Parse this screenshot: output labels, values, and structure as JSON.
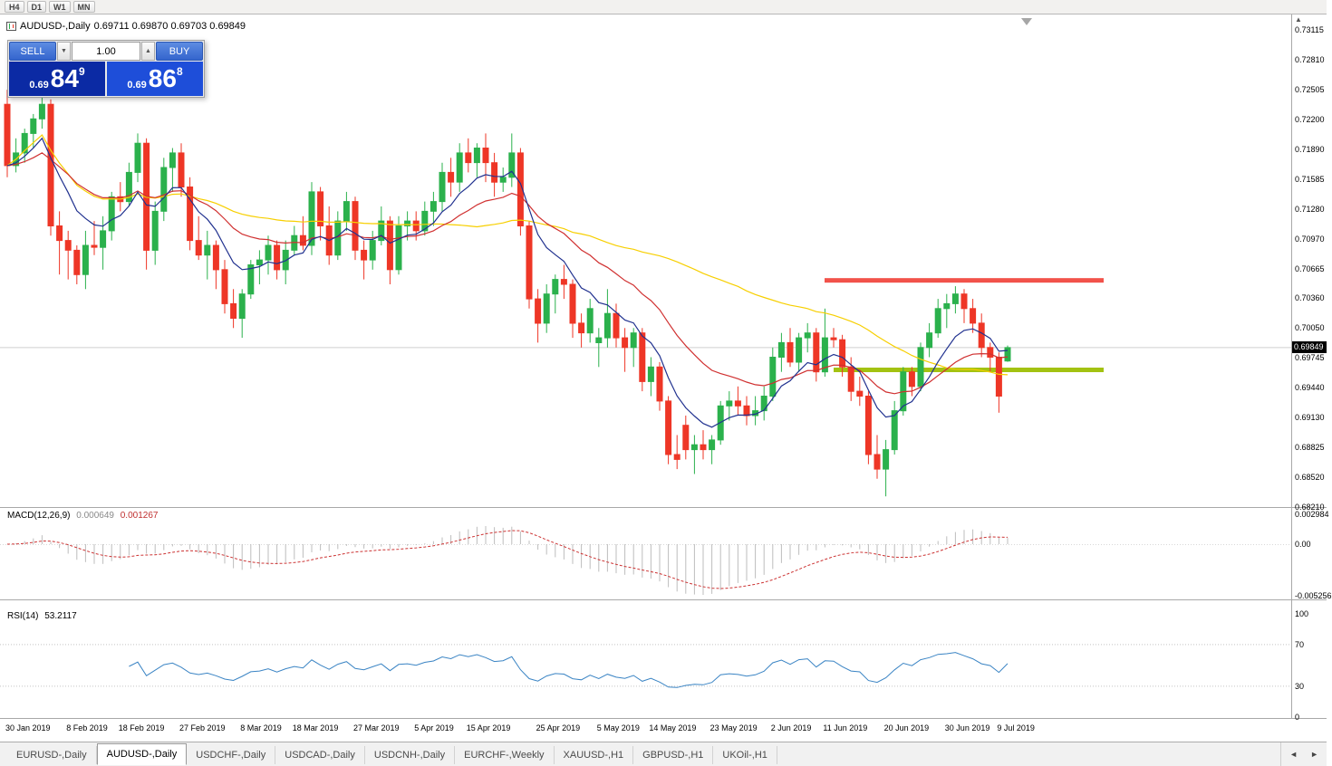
{
  "colors": {
    "up": "#2bb14c",
    "down": "#ee3626",
    "ma_fast": "#20318f",
    "ma_mid": "#d03030",
    "ma_slow": "#f7cf00",
    "resistance": "#f2524a",
    "support": "#a3c211",
    "macd_hist": "#bdbdbd",
    "macd_signal": "#cc3333",
    "rsi": "#3a84c4",
    "sell_box": "#0b2aa4",
    "buy_box": "#1e4ed9",
    "current_tag_bg": "#000000"
  },
  "icons": {
    "volume_down": "▼",
    "volume_up": "▲",
    "tab_scroll_left": "◄",
    "tab_scroll_right": "►",
    "axis_scroll_up": "▲"
  },
  "toolbar": {
    "timeframes": [
      "H4",
      "D1",
      "W1",
      "MN"
    ]
  },
  "chart_header": {
    "title": "AUDUSD-,Daily",
    "ohlc": "0.69711 0.69870 0.69703 0.69849"
  },
  "one_click": {
    "sell_label": "SELL",
    "buy_label": "BUY",
    "volume": "1.00",
    "sell_price": {
      "prefix": "0.69",
      "big": "84",
      "sup": "9"
    },
    "buy_price": {
      "prefix": "0.69",
      "big": "86",
      "sup": "8"
    }
  },
  "price_axis": {
    "labels": [
      "0.73115",
      "0.72810",
      "0.72505",
      "0.72200",
      "0.71890",
      "0.71585",
      "0.71280",
      "0.70970",
      "0.70665",
      "0.70360",
      "0.70050",
      "0.69745",
      "0.69440",
      "0.69130",
      "0.68825",
      "0.68520",
      "0.68210"
    ],
    "current": "0.69849"
  },
  "panels": {
    "macd": {
      "name": "MACD(12,26,9)",
      "value_main": "0.000649",
      "value_signal": "0.001267",
      "axis": [
        "0.002984",
        "0.00",
        "-0.005256"
      ]
    },
    "rsi": {
      "name": "RSI(14)",
      "value": "53.2117",
      "axis": [
        "100",
        "70",
        "30",
        "0"
      ]
    }
  },
  "date_axis": [
    "30 Jan 2019",
    "8 Feb 2019",
    "18 Feb 2019",
    "27 Feb 2019",
    "8 Mar 2019",
    "18 Mar 2019",
    "27 Mar 2019",
    "5 Apr 2019",
    "15 Apr 2019",
    "25 Apr 2019",
    "5 May 2019",
    "14 May 2019",
    "23 May 2019",
    "2 Jun 2019",
    "11 Jun 2019",
    "20 Jun 2019",
    "30 Jun 2019",
    "9 Jul 2019"
  ],
  "tabs": [
    {
      "label": "EURUSD-,Daily",
      "active": false
    },
    {
      "label": "AUDUSD-,Daily",
      "active": true
    },
    {
      "label": "USDCHF-,Daily",
      "active": false
    },
    {
      "label": "USDCAD-,Daily",
      "active": false
    },
    {
      "label": "USDCNH-,Daily",
      "active": false
    },
    {
      "label": "EURCHF-,Weekly",
      "active": false
    },
    {
      "label": "XAUUSD-,H1",
      "active": false
    },
    {
      "label": "GBPUSD-,H1",
      "active": false
    },
    {
      "label": "UKOil-,H1",
      "active": false
    }
  ],
  "chart_data": {
    "type": "candlestick",
    "symbol": "AUDUSD",
    "timeframe": "Daily",
    "current_close": 0.69849,
    "price_axis_top": 0.73115,
    "price_axis_bottom": 0.6821,
    "rsi_period": 14,
    "macd_params": {
      "fast": 12,
      "slow": 26,
      "signal": 9,
      "value": 0.000649,
      "signal_value": 0.001267
    },
    "rsi_value": 53.2117,
    "moving_averages": [
      {
        "kind": "ema",
        "period": 8,
        "color_key": "ma_fast"
      },
      {
        "kind": "ema",
        "period": 21,
        "color_key": "ma_mid"
      },
      {
        "kind": "sma",
        "period": 50,
        "color_key": "ma_slow"
      }
    ],
    "annotations": {
      "resistance_level": 0.7054,
      "support_level": 0.6962
    },
    "date_label_indices": [
      0,
      7,
      13,
      20,
      27,
      33,
      40,
      47,
      53,
      61,
      68,
      74,
      81,
      88,
      94,
      101,
      108,
      114
    ],
    "ohlc": [
      [
        0.7235,
        0.725,
        0.716,
        0.7172
      ],
      [
        0.7172,
        0.72,
        0.7165,
        0.7185
      ],
      [
        0.7185,
        0.721,
        0.7175,
        0.7205
      ],
      [
        0.7205,
        0.7225,
        0.719,
        0.722
      ],
      [
        0.722,
        0.725,
        0.721,
        0.7235
      ],
      [
        0.7235,
        0.724,
        0.71,
        0.711
      ],
      [
        0.711,
        0.7125,
        0.706,
        0.7095
      ],
      [
        0.7095,
        0.7105,
        0.7055,
        0.7085
      ],
      [
        0.7085,
        0.709,
        0.705,
        0.706
      ],
      [
        0.706,
        0.7105,
        0.7045,
        0.709
      ],
      [
        0.709,
        0.7115,
        0.708,
        0.7088
      ],
      [
        0.7088,
        0.712,
        0.7065,
        0.7105
      ],
      [
        0.7105,
        0.7145,
        0.7095,
        0.714
      ],
      [
        0.714,
        0.7155,
        0.7125,
        0.7135
      ],
      [
        0.7135,
        0.7175,
        0.713,
        0.7165
      ],
      [
        0.7165,
        0.7205,
        0.7155,
        0.7195
      ],
      [
        0.7195,
        0.72,
        0.7065,
        0.7085
      ],
      [
        0.7085,
        0.7135,
        0.707,
        0.7125
      ],
      [
        0.7125,
        0.718,
        0.7115,
        0.717
      ],
      [
        0.717,
        0.719,
        0.7145,
        0.7185
      ],
      [
        0.7185,
        0.7195,
        0.714,
        0.715
      ],
      [
        0.715,
        0.716,
        0.7085,
        0.7095
      ],
      [
        0.7095,
        0.712,
        0.7075,
        0.708
      ],
      [
        0.708,
        0.7105,
        0.7055,
        0.709
      ],
      [
        0.709,
        0.7095,
        0.7045,
        0.7065
      ],
      [
        0.7065,
        0.7075,
        0.702,
        0.703
      ],
      [
        0.703,
        0.7045,
        0.7005,
        0.7015
      ],
      [
        0.7015,
        0.7045,
        0.6995,
        0.704
      ],
      [
        0.704,
        0.7075,
        0.7035,
        0.707
      ],
      [
        0.707,
        0.7085,
        0.705,
        0.7075
      ],
      [
        0.7075,
        0.71,
        0.706,
        0.709
      ],
      [
        0.709,
        0.7095,
        0.7055,
        0.7065
      ],
      [
        0.7065,
        0.7095,
        0.705,
        0.7085
      ],
      [
        0.7085,
        0.711,
        0.708,
        0.71
      ],
      [
        0.71,
        0.712,
        0.7085,
        0.709
      ],
      [
        0.709,
        0.7155,
        0.708,
        0.7145
      ],
      [
        0.7145,
        0.715,
        0.7095,
        0.711
      ],
      [
        0.711,
        0.713,
        0.707,
        0.708
      ],
      [
        0.708,
        0.7125,
        0.7075,
        0.7115
      ],
      [
        0.7115,
        0.7145,
        0.7105,
        0.7135
      ],
      [
        0.7135,
        0.714,
        0.7075,
        0.7085
      ],
      [
        0.7085,
        0.7095,
        0.7055,
        0.7075
      ],
      [
        0.7075,
        0.7105,
        0.7065,
        0.7095
      ],
      [
        0.7095,
        0.713,
        0.709,
        0.7115
      ],
      [
        0.7115,
        0.712,
        0.705,
        0.7065
      ],
      [
        0.7065,
        0.712,
        0.706,
        0.711
      ],
      [
        0.711,
        0.7125,
        0.7095,
        0.7115
      ],
      [
        0.7115,
        0.7125,
        0.7095,
        0.7105
      ],
      [
        0.7105,
        0.7135,
        0.71,
        0.7125
      ],
      [
        0.7125,
        0.7145,
        0.711,
        0.7135
      ],
      [
        0.7135,
        0.7175,
        0.7125,
        0.7165
      ],
      [
        0.7165,
        0.718,
        0.714,
        0.7155
      ],
      [
        0.7155,
        0.7195,
        0.7145,
        0.7185
      ],
      [
        0.7185,
        0.72,
        0.7165,
        0.7175
      ],
      [
        0.7175,
        0.7195,
        0.716,
        0.719
      ],
      [
        0.719,
        0.7205,
        0.7155,
        0.7175
      ],
      [
        0.7175,
        0.7185,
        0.714,
        0.7155
      ],
      [
        0.7155,
        0.717,
        0.7145,
        0.716
      ],
      [
        0.716,
        0.7205,
        0.715,
        0.7185
      ],
      [
        0.7185,
        0.719,
        0.71,
        0.711
      ],
      [
        0.711,
        0.7115,
        0.7025,
        0.7035
      ],
      [
        0.7035,
        0.7045,
        0.699,
        0.701
      ],
      [
        0.701,
        0.705,
        0.7,
        0.704
      ],
      [
        0.704,
        0.706,
        0.702,
        0.7055
      ],
      [
        0.7055,
        0.707,
        0.7035,
        0.705
      ],
      [
        0.705,
        0.7055,
        0.6995,
        0.701
      ],
      [
        0.701,
        0.702,
        0.6985,
        0.7
      ],
      [
        0.7,
        0.7035,
        0.699,
        0.7025
      ],
      [
        0.699,
        0.7005,
        0.6965,
        0.6995
      ],
      [
        0.6995,
        0.7045,
        0.6985,
        0.702
      ],
      [
        0.702,
        0.703,
        0.6985,
        0.6995
      ],
      [
        0.6995,
        0.7005,
        0.696,
        0.6985
      ],
      [
        0.6985,
        0.7005,
        0.6965,
        0.7
      ],
      [
        0.7,
        0.7005,
        0.694,
        0.695
      ],
      [
        0.695,
        0.6975,
        0.6935,
        0.6965
      ],
      [
        0.6965,
        0.697,
        0.692,
        0.693
      ],
      [
        0.693,
        0.6935,
        0.6865,
        0.6875
      ],
      [
        0.6875,
        0.6895,
        0.686,
        0.687
      ],
      [
        0.6905,
        0.6915,
        0.687,
        0.688
      ],
      [
        0.688,
        0.6895,
        0.6855,
        0.6885
      ],
      [
        0.6885,
        0.69,
        0.687,
        0.688
      ],
      [
        0.688,
        0.6895,
        0.6865,
        0.689
      ],
      [
        0.689,
        0.693,
        0.6885,
        0.6925
      ],
      [
        0.6925,
        0.694,
        0.691,
        0.693
      ],
      [
        0.693,
        0.6945,
        0.6915,
        0.6925
      ],
      [
        0.6925,
        0.6935,
        0.6905,
        0.6915
      ],
      [
        0.6915,
        0.6935,
        0.6905,
        0.692
      ],
      [
        0.692,
        0.6945,
        0.691,
        0.6935
      ],
      [
        0.6935,
        0.6985,
        0.693,
        0.6975
      ],
      [
        0.6975,
        0.7,
        0.696,
        0.699
      ],
      [
        0.699,
        0.7005,
        0.6965,
        0.697
      ],
      [
        0.697,
        0.7,
        0.696,
        0.6995
      ],
      [
        0.6995,
        0.701,
        0.698,
        0.7
      ],
      [
        0.7,
        0.7005,
        0.695,
        0.696
      ],
      [
        0.696,
        0.7025,
        0.6955,
        0.6995
      ],
      [
        0.6995,
        0.7005,
        0.6985,
        0.6993
      ],
      [
        0.6993,
        0.6998,
        0.6955,
        0.6965
      ],
      [
        0.6965,
        0.6975,
        0.693,
        0.694
      ],
      [
        0.694,
        0.6955,
        0.6925,
        0.6935
      ],
      [
        0.6935,
        0.694,
        0.6865,
        0.6875
      ],
      [
        0.6875,
        0.6895,
        0.685,
        0.686
      ],
      [
        0.686,
        0.689,
        0.6832,
        0.688
      ],
      [
        0.688,
        0.693,
        0.6875,
        0.692
      ],
      [
        0.692,
        0.6965,
        0.6915,
        0.696
      ],
      [
        0.696,
        0.6965,
        0.6935,
        0.6945
      ],
      [
        0.6945,
        0.699,
        0.694,
        0.6985
      ],
      [
        0.6985,
        0.701,
        0.6975,
        0.7
      ],
      [
        0.7,
        0.7035,
        0.6995,
        0.7025
      ],
      [
        0.7025,
        0.704,
        0.7005,
        0.703
      ],
      [
        0.703,
        0.7048,
        0.702,
        0.704
      ],
      [
        0.704,
        0.7045,
        0.701,
        0.7025
      ],
      [
        0.7025,
        0.7035,
        0.7,
        0.701
      ],
      [
        0.701,
        0.702,
        0.6975,
        0.6985
      ],
      [
        0.6985,
        0.699,
        0.696,
        0.6975
      ],
      [
        0.6975,
        0.698,
        0.6918,
        0.6935
      ],
      [
        0.69711,
        0.6987,
        0.69703,
        0.69849
      ]
    ]
  }
}
